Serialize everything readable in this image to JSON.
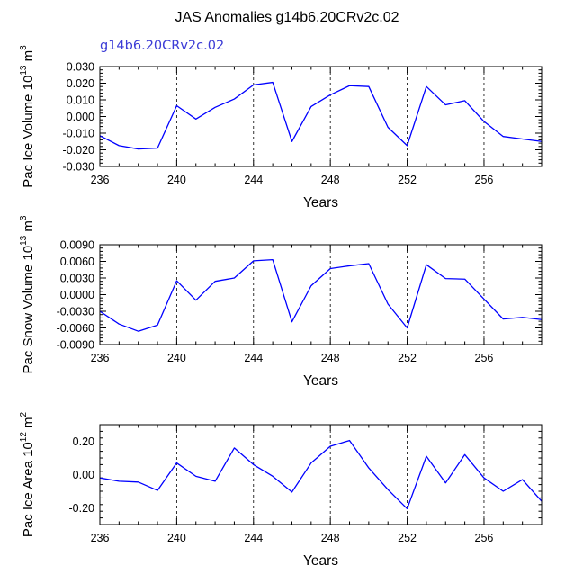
{
  "title": "JAS Anomalies g14b6.20CRv2c.02",
  "case_label": "g14b6.20CRv2c.02",
  "colors": {
    "series": "#0000ff",
    "case_label": "#3c3cd6"
  },
  "chart_data": [
    {
      "type": "line",
      "xlabel": "Years",
      "ylabel": "Pac Ice Volume 10",
      "ylabel_exp": "13",
      "ylabel_unit": "m",
      "ylabel_unit_exp": "3",
      "xlim": [
        236,
        259
      ],
      "ylim": [
        -0.03,
        0.03
      ],
      "xticks": [
        236,
        240,
        244,
        248,
        252,
        256
      ],
      "xtick_labels": [
        "236",
        "240",
        "244",
        "248",
        "252",
        "256"
      ],
      "yticks": [
        -0.03,
        -0.02,
        -0.01,
        0.0,
        0.01,
        0.02,
        0.03
      ],
      "ytick_labels": [
        "-0.030",
        "-0.020",
        "-0.010",
        "0.000",
        "0.010",
        "0.020",
        "0.030"
      ],
      "grid_x": [
        240,
        244,
        248,
        252,
        256
      ],
      "series": [
        {
          "name": "g14b6.20CRv2c.02",
          "x": [
            236,
            237,
            238,
            239,
            240,
            241,
            242,
            243,
            244,
            245,
            246,
            247,
            248,
            249,
            250,
            251,
            252,
            253,
            254,
            255,
            256,
            257,
            258,
            259
          ],
          "values": [
            -0.0115,
            -0.0175,
            -0.0195,
            -0.019,
            0.0065,
            -0.0015,
            0.0055,
            0.0105,
            0.019,
            0.0205,
            -0.015,
            0.006,
            0.013,
            0.0185,
            0.018,
            -0.0065,
            -0.0175,
            0.018,
            0.007,
            0.0095,
            -0.003,
            -0.012,
            -0.0135,
            -0.015
          ]
        }
      ]
    },
    {
      "type": "line",
      "xlabel": "Years",
      "ylabel": "Pac Snow Volume 10",
      "ylabel_exp": "13",
      "ylabel_unit": "m",
      "ylabel_unit_exp": "3",
      "xlim": [
        236,
        259
      ],
      "ylim": [
        -0.009,
        0.009
      ],
      "xticks": [
        236,
        240,
        244,
        248,
        252,
        256
      ],
      "xtick_labels": [
        "236",
        "240",
        "244",
        "248",
        "252",
        "256"
      ],
      "yticks": [
        -0.009,
        -0.006,
        -0.003,
        0.0,
        0.003,
        0.006,
        0.009
      ],
      "ytick_labels": [
        "-0.0090",
        "-0.0060",
        "-0.0030",
        "0.0000",
        "0.0030",
        "0.0060",
        "0.0090"
      ],
      "grid_x": [
        240,
        244,
        248,
        252,
        256
      ],
      "series": [
        {
          "name": "g14b6.20CRv2c.02",
          "x": [
            236,
            237,
            238,
            239,
            240,
            241,
            242,
            243,
            244,
            245,
            246,
            247,
            248,
            249,
            250,
            251,
            252,
            253,
            254,
            255,
            256,
            257,
            258,
            259
          ],
          "values": [
            -0.003,
            -0.0053,
            -0.0066,
            -0.0055,
            0.0025,
            -0.001,
            0.0024,
            0.003,
            0.0061,
            0.0063,
            -0.0049,
            0.0016,
            0.0047,
            0.0052,
            0.0056,
            -0.0017,
            -0.006,
            0.0054,
            0.0029,
            0.0028,
            -0.0008,
            -0.0044,
            -0.0041,
            -0.0045
          ]
        }
      ]
    },
    {
      "type": "line",
      "xlabel": "Years",
      "ylabel": "Pac Ice Area 10",
      "ylabel_exp": "12",
      "ylabel_unit": "m",
      "ylabel_unit_exp": "2",
      "xlim": [
        236,
        259
      ],
      "ylim": [
        -0.3,
        0.3
      ],
      "xticks": [
        236,
        240,
        244,
        248,
        252,
        256
      ],
      "xtick_labels": [
        "236",
        "240",
        "244",
        "248",
        "252",
        "256"
      ],
      "yticks": [
        -0.2,
        0.0,
        0.2
      ],
      "ytick_labels": [
        "-0.20",
        "0.00",
        "0.20"
      ],
      "grid_x": [
        240,
        244,
        248,
        252,
        256
      ],
      "series": [
        {
          "name": "g14b6.20CRv2c.02",
          "x": [
            236,
            237,
            238,
            239,
            240,
            241,
            242,
            243,
            244,
            245,
            246,
            247,
            248,
            249,
            250,
            251,
            252,
            253,
            254,
            255,
            256,
            257,
            258,
            259
          ],
          "values": [
            -0.02,
            -0.04,
            -0.045,
            -0.095,
            0.07,
            -0.01,
            -0.04,
            0.16,
            0.06,
            -0.01,
            -0.105,
            0.07,
            0.17,
            0.205,
            0.04,
            -0.09,
            -0.205,
            0.11,
            -0.05,
            0.12,
            -0.02,
            -0.1,
            -0.03,
            -0.16
          ]
        }
      ]
    }
  ]
}
